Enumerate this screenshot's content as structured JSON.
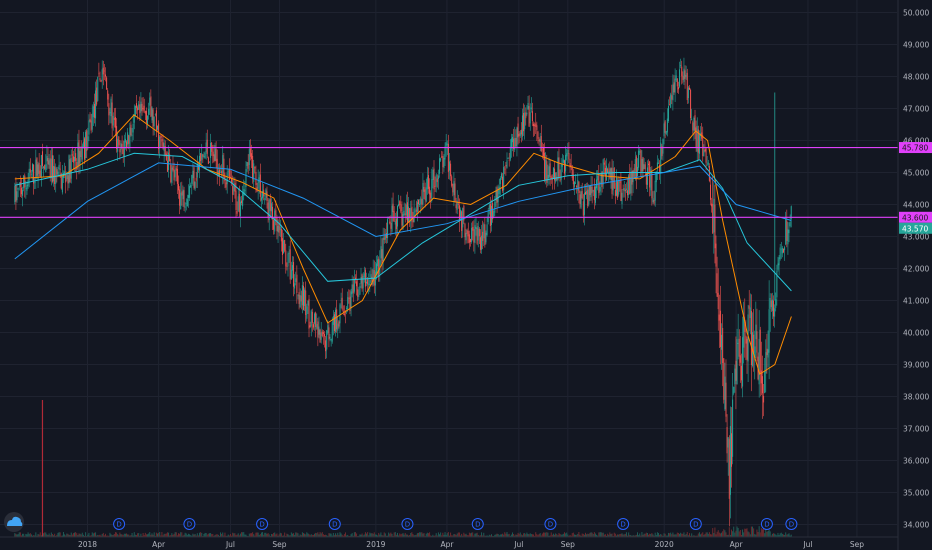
{
  "theme": {
    "background": "#131722",
    "grid": "#1f2330",
    "axis_text": "#b2b5be",
    "up": "#26a69a",
    "down": "#ef5350",
    "ma_fast": "#ff8c00",
    "ma_mid": "#26c6da",
    "ma_slow": "#2196f3",
    "hline": "#e040fb",
    "last_price_bg": "#26a69a",
    "dividend_marker": "#2962ff"
  },
  "chart_data": {
    "type": "candlestick",
    "title": "",
    "ylim": [
      34.0,
      50.0
    ],
    "yticks": [
      "34.000",
      "35.000",
      "36.000",
      "37.000",
      "38.000",
      "39.000",
      "40.000",
      "41.000",
      "42.000",
      "43.000",
      "44.000",
      "45.000",
      "46.000",
      "47.000",
      "48.000",
      "49.000",
      "50.000"
    ],
    "xticks": [
      {
        "label": "2018",
        "date": "2018-01-01"
      },
      {
        "label": "Apr",
        "date": "2018-04-01"
      },
      {
        "label": "Jul",
        "date": "2018-07-01"
      },
      {
        "label": "Sep",
        "date": "2018-09-01"
      },
      {
        "label": "2019",
        "date": "2019-01-01"
      },
      {
        "label": "Apr",
        "date": "2019-04-01"
      },
      {
        "label": "Jul",
        "date": "2019-07-01"
      },
      {
        "label": "Sep",
        "date": "2019-09-01"
      },
      {
        "label": "2020",
        "date": "2020-01-01"
      },
      {
        "label": "Apr",
        "date": "2020-04-01"
      },
      {
        "label": "Jul",
        "date": "2020-07-01"
      },
      {
        "label": "Sep",
        "date": "2020-09-01"
      }
    ],
    "price_path": [
      [
        "2017-10-01",
        44.2
      ],
      [
        "2017-11-01",
        45.2
      ],
      [
        "2017-12-01",
        44.8
      ],
      [
        "2018-01-01",
        46.0
      ],
      [
        "2018-01-20",
        48.3
      ],
      [
        "2018-02-10",
        45.5
      ],
      [
        "2018-03-01",
        46.6
      ],
      [
        "2018-03-20",
        47.0
      ],
      [
        "2018-04-05",
        45.8
      ],
      [
        "2018-05-01",
        44.2
      ],
      [
        "2018-06-01",
        45.7
      ],
      [
        "2018-06-20",
        45.2
      ],
      [
        "2018-07-10",
        44.0
      ],
      [
        "2018-07-25",
        45.4
      ],
      [
        "2018-08-20",
        43.8
      ],
      [
        "2018-09-10",
        42.3
      ],
      [
        "2018-10-01",
        41.0
      ],
      [
        "2018-10-25",
        39.6
      ],
      [
        "2018-11-15",
        40.6
      ],
      [
        "2018-12-10",
        41.4
      ],
      [
        "2019-01-01",
        41.8
      ],
      [
        "2019-01-20",
        43.5
      ],
      [
        "2019-02-15",
        43.8
      ],
      [
        "2019-03-10",
        44.5
      ],
      [
        "2019-04-01",
        45.6
      ],
      [
        "2019-04-20",
        43.5
      ],
      [
        "2019-05-15",
        42.8
      ],
      [
        "2019-06-10",
        44.8
      ],
      [
        "2019-06-25",
        46.2
      ],
      [
        "2019-07-15",
        46.8
      ],
      [
        "2019-08-10",
        44.6
      ],
      [
        "2019-09-01",
        45.6
      ],
      [
        "2019-09-20",
        44.0
      ],
      [
        "2019-10-15",
        45.0
      ],
      [
        "2019-11-10",
        44.3
      ],
      [
        "2019-12-01",
        45.4
      ],
      [
        "2019-12-20",
        44.4
      ],
      [
        "2020-01-10",
        47.5
      ],
      [
        "2020-01-25",
        48.3
      ],
      [
        "2020-02-10",
        46.2
      ],
      [
        "2020-02-25",
        45.2
      ],
      [
        "2020-03-05",
        43.0
      ],
      [
        "2020-03-18",
        38.0
      ],
      [
        "2020-03-23",
        35.6
      ],
      [
        "2020-04-05",
        39.5
      ],
      [
        "2020-04-20",
        40.0
      ],
      [
        "2020-05-05",
        38.3
      ],
      [
        "2020-05-20",
        41.2
      ],
      [
        "2020-06-01",
        43.0
      ],
      [
        "2020-06-10",
        43.6
      ]
    ],
    "moving_averages": [
      {
        "name": "",
        "color_key": "ma_fast",
        "points": [
          [
            "2017-10-01",
            44.8
          ],
          [
            "2017-12-01",
            44.9
          ],
          [
            "2018-01-15",
            45.6
          ],
          [
            "2018-03-01",
            46.8
          ],
          [
            "2018-04-15",
            46.0
          ],
          [
            "2018-06-01",
            45.1
          ],
          [
            "2018-07-15",
            44.7
          ],
          [
            "2018-08-25",
            44.2
          ],
          [
            "2018-10-01",
            42.0
          ],
          [
            "2018-11-01",
            40.3
          ],
          [
            "2018-12-15",
            41.0
          ],
          [
            "2019-02-01",
            43.2
          ],
          [
            "2019-03-15",
            44.2
          ],
          [
            "2019-05-01",
            44.0
          ],
          [
            "2019-06-15",
            44.6
          ],
          [
            "2019-07-20",
            45.6
          ],
          [
            "2019-08-20",
            45.3
          ],
          [
            "2019-10-15",
            44.9
          ],
          [
            "2019-12-01",
            44.8
          ],
          [
            "2020-01-15",
            45.5
          ],
          [
            "2020-02-10",
            46.3
          ],
          [
            "2020-02-25",
            46.0
          ],
          [
            "2020-03-15",
            43.5
          ],
          [
            "2020-04-15",
            40.0
          ],
          [
            "2020-05-01",
            38.7
          ],
          [
            "2020-05-20",
            39.0
          ],
          [
            "2020-06-10",
            40.5
          ]
        ]
      },
      {
        "name": "",
        "color_key": "ma_mid",
        "points": [
          [
            "2017-10-01",
            44.6
          ],
          [
            "2018-01-01",
            45.1
          ],
          [
            "2018-03-01",
            45.6
          ],
          [
            "2018-05-01",
            45.5
          ],
          [
            "2018-07-01",
            44.7
          ],
          [
            "2018-09-01",
            43.4
          ],
          [
            "2018-11-01",
            41.6
          ],
          [
            "2019-01-01",
            41.7
          ],
          [
            "2019-03-01",
            42.8
          ],
          [
            "2019-05-01",
            43.7
          ],
          [
            "2019-07-01",
            44.6
          ],
          [
            "2019-09-01",
            44.9
          ],
          [
            "2019-11-01",
            45.0
          ],
          [
            "2020-01-01",
            45.0
          ],
          [
            "2020-02-15",
            45.4
          ],
          [
            "2020-03-15",
            44.5
          ],
          [
            "2020-04-15",
            42.8
          ],
          [
            "2020-06-10",
            41.3
          ]
        ]
      },
      {
        "name": "",
        "color_key": "ma_slow",
        "points": [
          [
            "2017-10-01",
            42.3
          ],
          [
            "2018-01-01",
            44.1
          ],
          [
            "2018-04-01",
            45.3
          ],
          [
            "2018-07-01",
            45.1
          ],
          [
            "2018-10-01",
            44.2
          ],
          [
            "2019-01-01",
            43.0
          ],
          [
            "2019-04-01",
            43.4
          ],
          [
            "2019-07-01",
            44.1
          ],
          [
            "2019-10-01",
            44.6
          ],
          [
            "2020-01-01",
            45.0
          ],
          [
            "2020-02-15",
            45.2
          ],
          [
            "2020-04-01",
            44.0
          ],
          [
            "2020-06-10",
            43.5
          ]
        ]
      }
    ],
    "horizontal_lines": [
      45.78,
      43.6
    ],
    "price_labels": [
      {
        "value": 45.78,
        "text": "45.780",
        "color_key": "hline"
      },
      {
        "value": 43.6,
        "text": "43.600",
        "color_key": "hline"
      },
      {
        "value": 43.57,
        "text": "43.570",
        "color_key": "last_price_bg"
      }
    ],
    "dividend_markers": {
      "symbol": "D",
      "dates": [
        "2018-02-10",
        "2018-05-10",
        "2018-08-10",
        "2018-11-10",
        "2019-02-10",
        "2019-05-10",
        "2019-08-10",
        "2019-11-10",
        "2020-02-10",
        "2020-05-10",
        "2020-06-10"
      ]
    },
    "volume_spike_date": "2017-11-05"
  }
}
